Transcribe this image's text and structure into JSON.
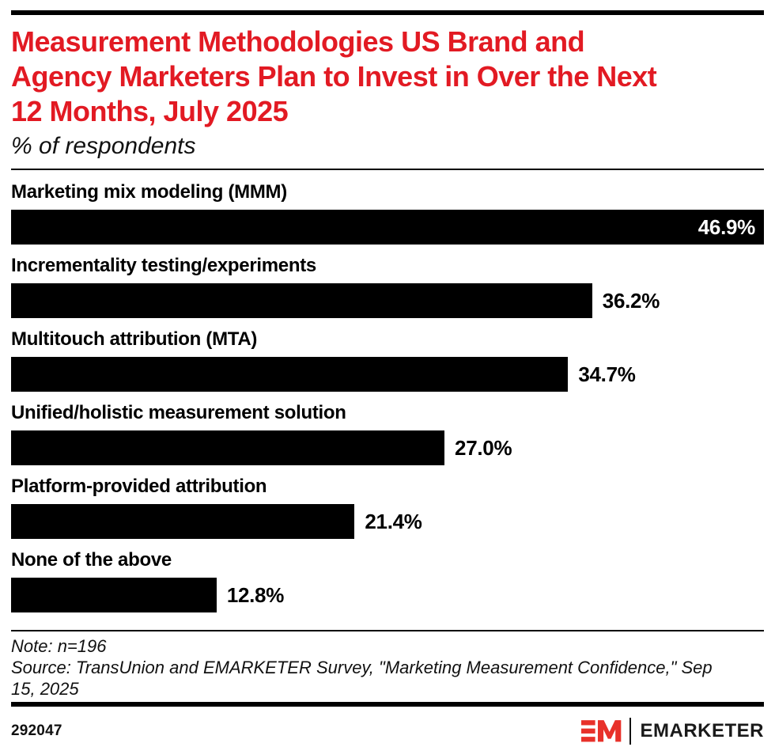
{
  "header": {
    "title": "Measurement Methodologies US Brand and Agency Marketers Plan to Invest in Over the Next 12 Months, July 2025",
    "title_lines": [
      "Measurement Methodologies US Brand and",
      "Agency Marketers Plan to Invest in Over the Next",
      "12 Months, July 2025"
    ],
    "subtitle": "% of respondents",
    "title_color": "#e21a23"
  },
  "chart_data": {
    "type": "bar",
    "orientation": "horizontal",
    "title": "Measurement Methodologies US Brand and Agency Marketers Plan to Invest in Over the Next 12 Months, July 2025",
    "subtitle": "% of respondents",
    "categories": [
      "Marketing mix modeling (MMM)",
      "Incrementality testing/experiments",
      "Multitouch attribution (MTA)",
      "Unified/holistic measurement solution",
      "Platform-provided attribution",
      "None of the above"
    ],
    "values": [
      46.9,
      36.2,
      34.7,
      27.0,
      21.4,
      12.8
    ],
    "value_labels": [
      "46.9%",
      "36.2%",
      "34.7%",
      "27.0%",
      "21.4%",
      "12.8%"
    ],
    "xlabel": "",
    "ylabel": "",
    "xlim": [
      0,
      46.9
    ],
    "bar_color": "#000000",
    "grid": false,
    "legend": false,
    "value_label_style": "max bar label inside in white, others outside in black"
  },
  "footer": {
    "note": "Note: n=196",
    "source_lines": [
      "Source: TransUnion and EMARKETER Survey, \"Marketing Measurement Confidence,\" Sep",
      "15, 2025"
    ],
    "chart_id": "292047",
    "logo_text": "EMARKETER"
  },
  "colors": {
    "accent_red": "#e21a23",
    "logo_red": "#e8312a",
    "bar": "#000000",
    "rule": "#000000"
  }
}
